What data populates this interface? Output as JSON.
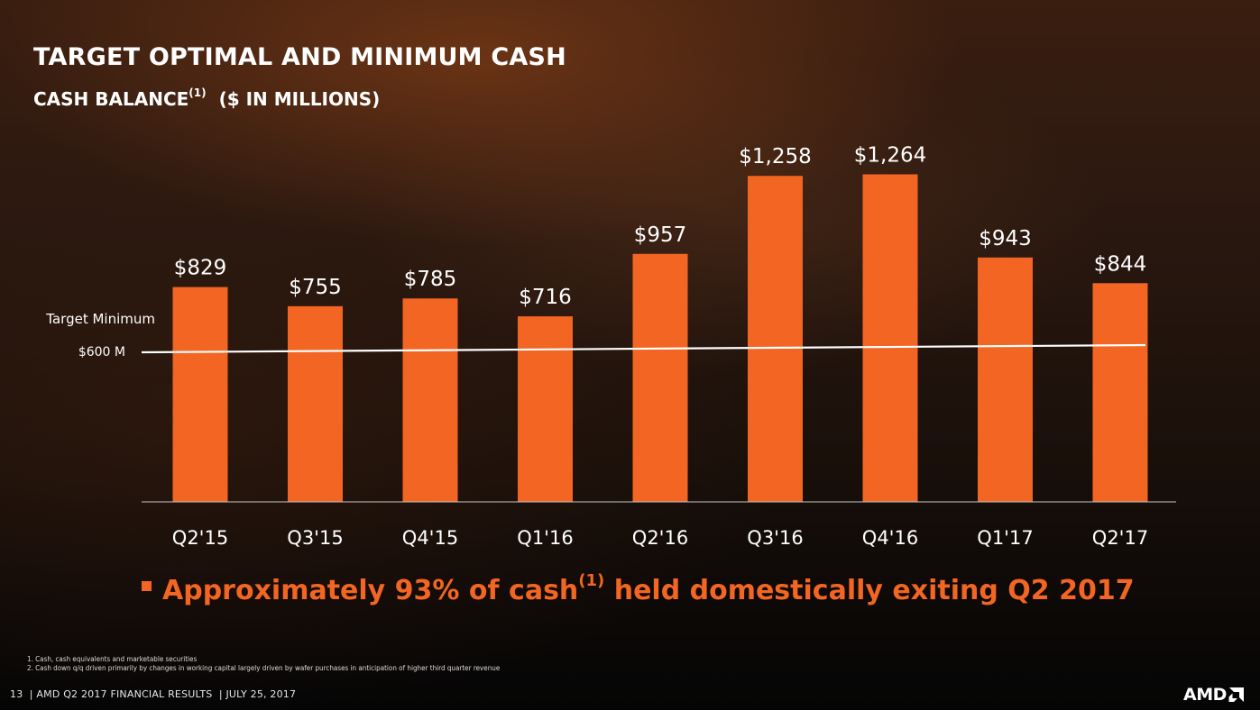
{
  "header": {
    "title": "TARGET OPTIMAL AND MINIMUM CASH",
    "subtitle_main": "CASH BALANCE",
    "subtitle_sup": "(1)",
    "subtitle_units": "($ IN MILLIONS)"
  },
  "chart_data": {
    "type": "bar",
    "categories": [
      "Q2'15",
      "Q3'15",
      "Q4'15",
      "Q1'16",
      "Q2'16",
      "Q3'16",
      "Q4'16",
      "Q1'17",
      "Q2'17"
    ],
    "values": [
      829,
      755,
      785,
      716,
      957,
      1258,
      1264,
      943,
      844
    ],
    "data_labels": [
      "$829",
      "$755",
      "$785",
      "$716",
      "$957",
      "$1,258",
      "$1,264",
      "$943",
      "$844"
    ],
    "reference_line": {
      "label": "Target Minimum",
      "value_label": "$600 M",
      "value": 600
    },
    "ylim": [
      0,
      1400
    ],
    "bar_color": "#f26522",
    "line_color": "#ffffff",
    "grid": false
  },
  "bullet": {
    "text_before": "Approximately 93% of cash",
    "sup": "(1)",
    "text_after": " held domestically exiting Q2 2017",
    "color": "#f26522"
  },
  "footnotes": [
    "1.  Cash, cash equivalents and marketable securities",
    "2.  Cash down q/q driven primarily by changes in working capital largely driven by wafer purchases in anticipation of higher third quarter revenue"
  ],
  "footer": {
    "page_number": "13",
    "text": "AMD Q2 2017 FINANCIAL RESULTS",
    "date": "JULY 25, 2017"
  },
  "logo": {
    "text": "AMD",
    "icon": "amd-arrow-icon"
  }
}
